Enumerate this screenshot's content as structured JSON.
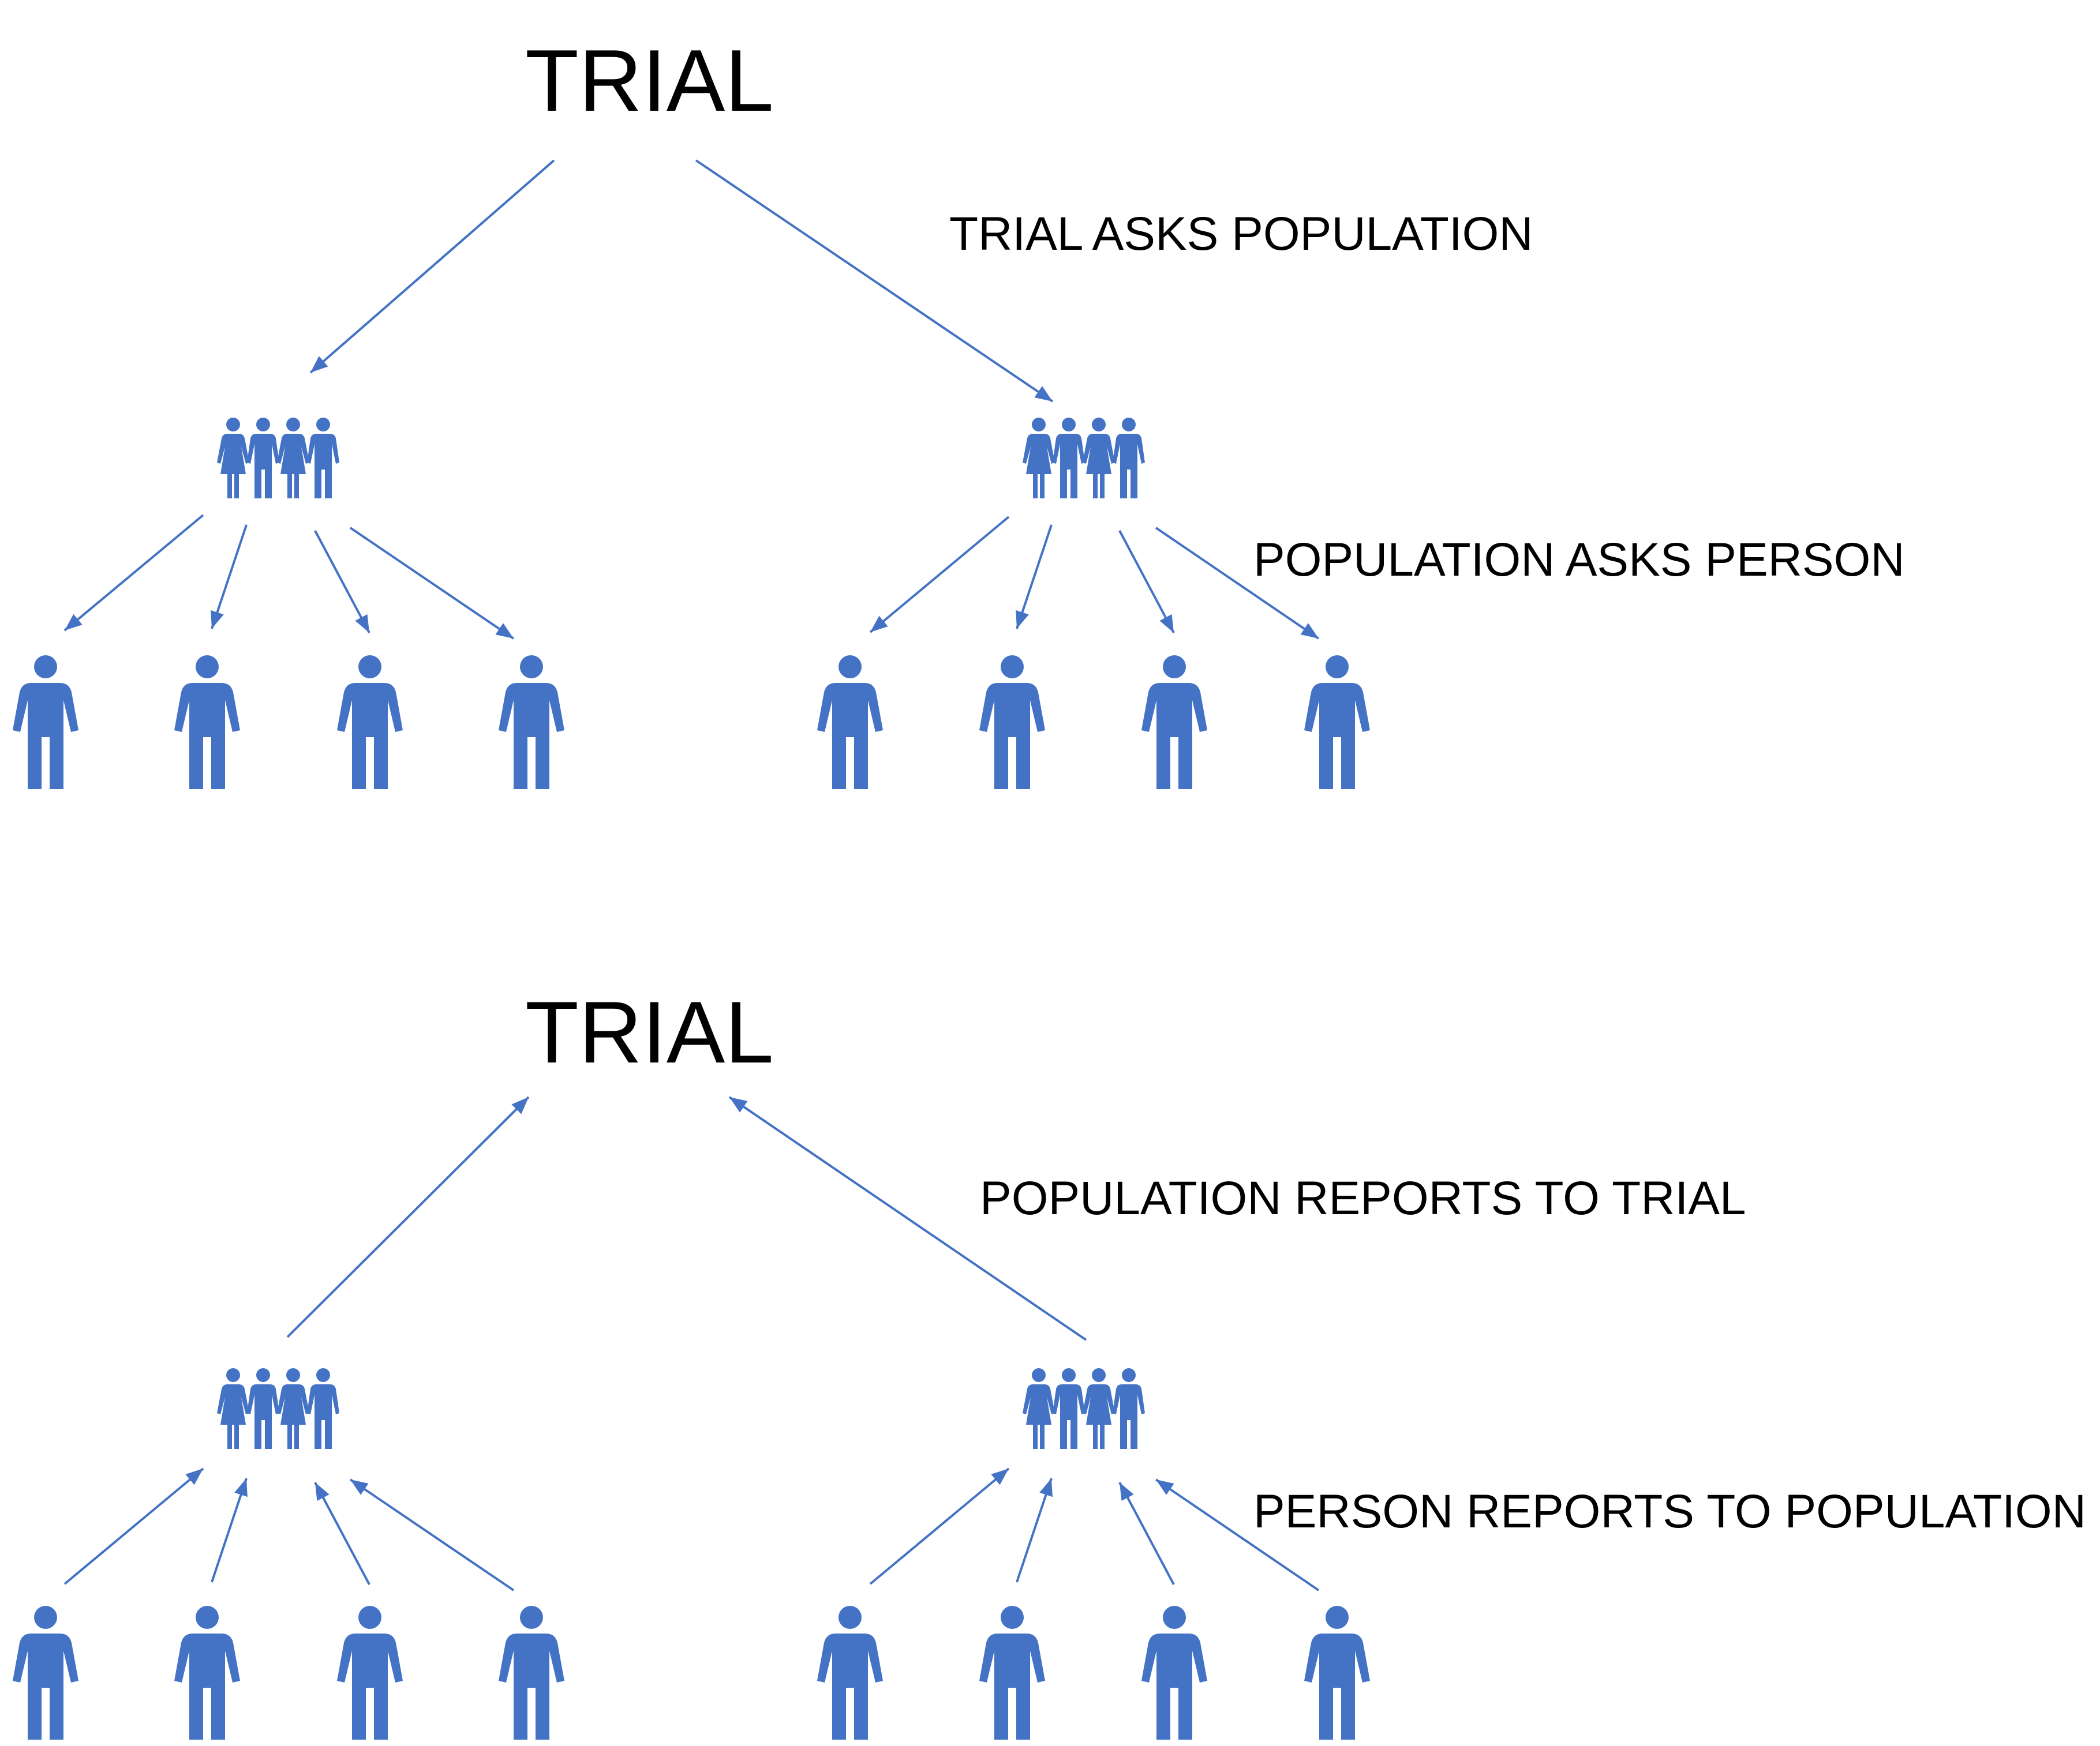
{
  "colors": {
    "accent": "#4472c4",
    "text": "#000000",
    "background": "#ffffff"
  },
  "top": {
    "title": "TRIAL",
    "label_trial_population": "TRIAL ASKS POPULATION",
    "label_population_person": "POPULATION ASKS PERSON"
  },
  "bottom": {
    "title": "TRIAL",
    "label_population_trial": "POPULATION REPORTS TO TRIAL",
    "label_person_population": "PERSON REPORTS TO POPULATION"
  },
  "icons": {
    "population": "group-of-people-icon",
    "person": "person-icon"
  }
}
